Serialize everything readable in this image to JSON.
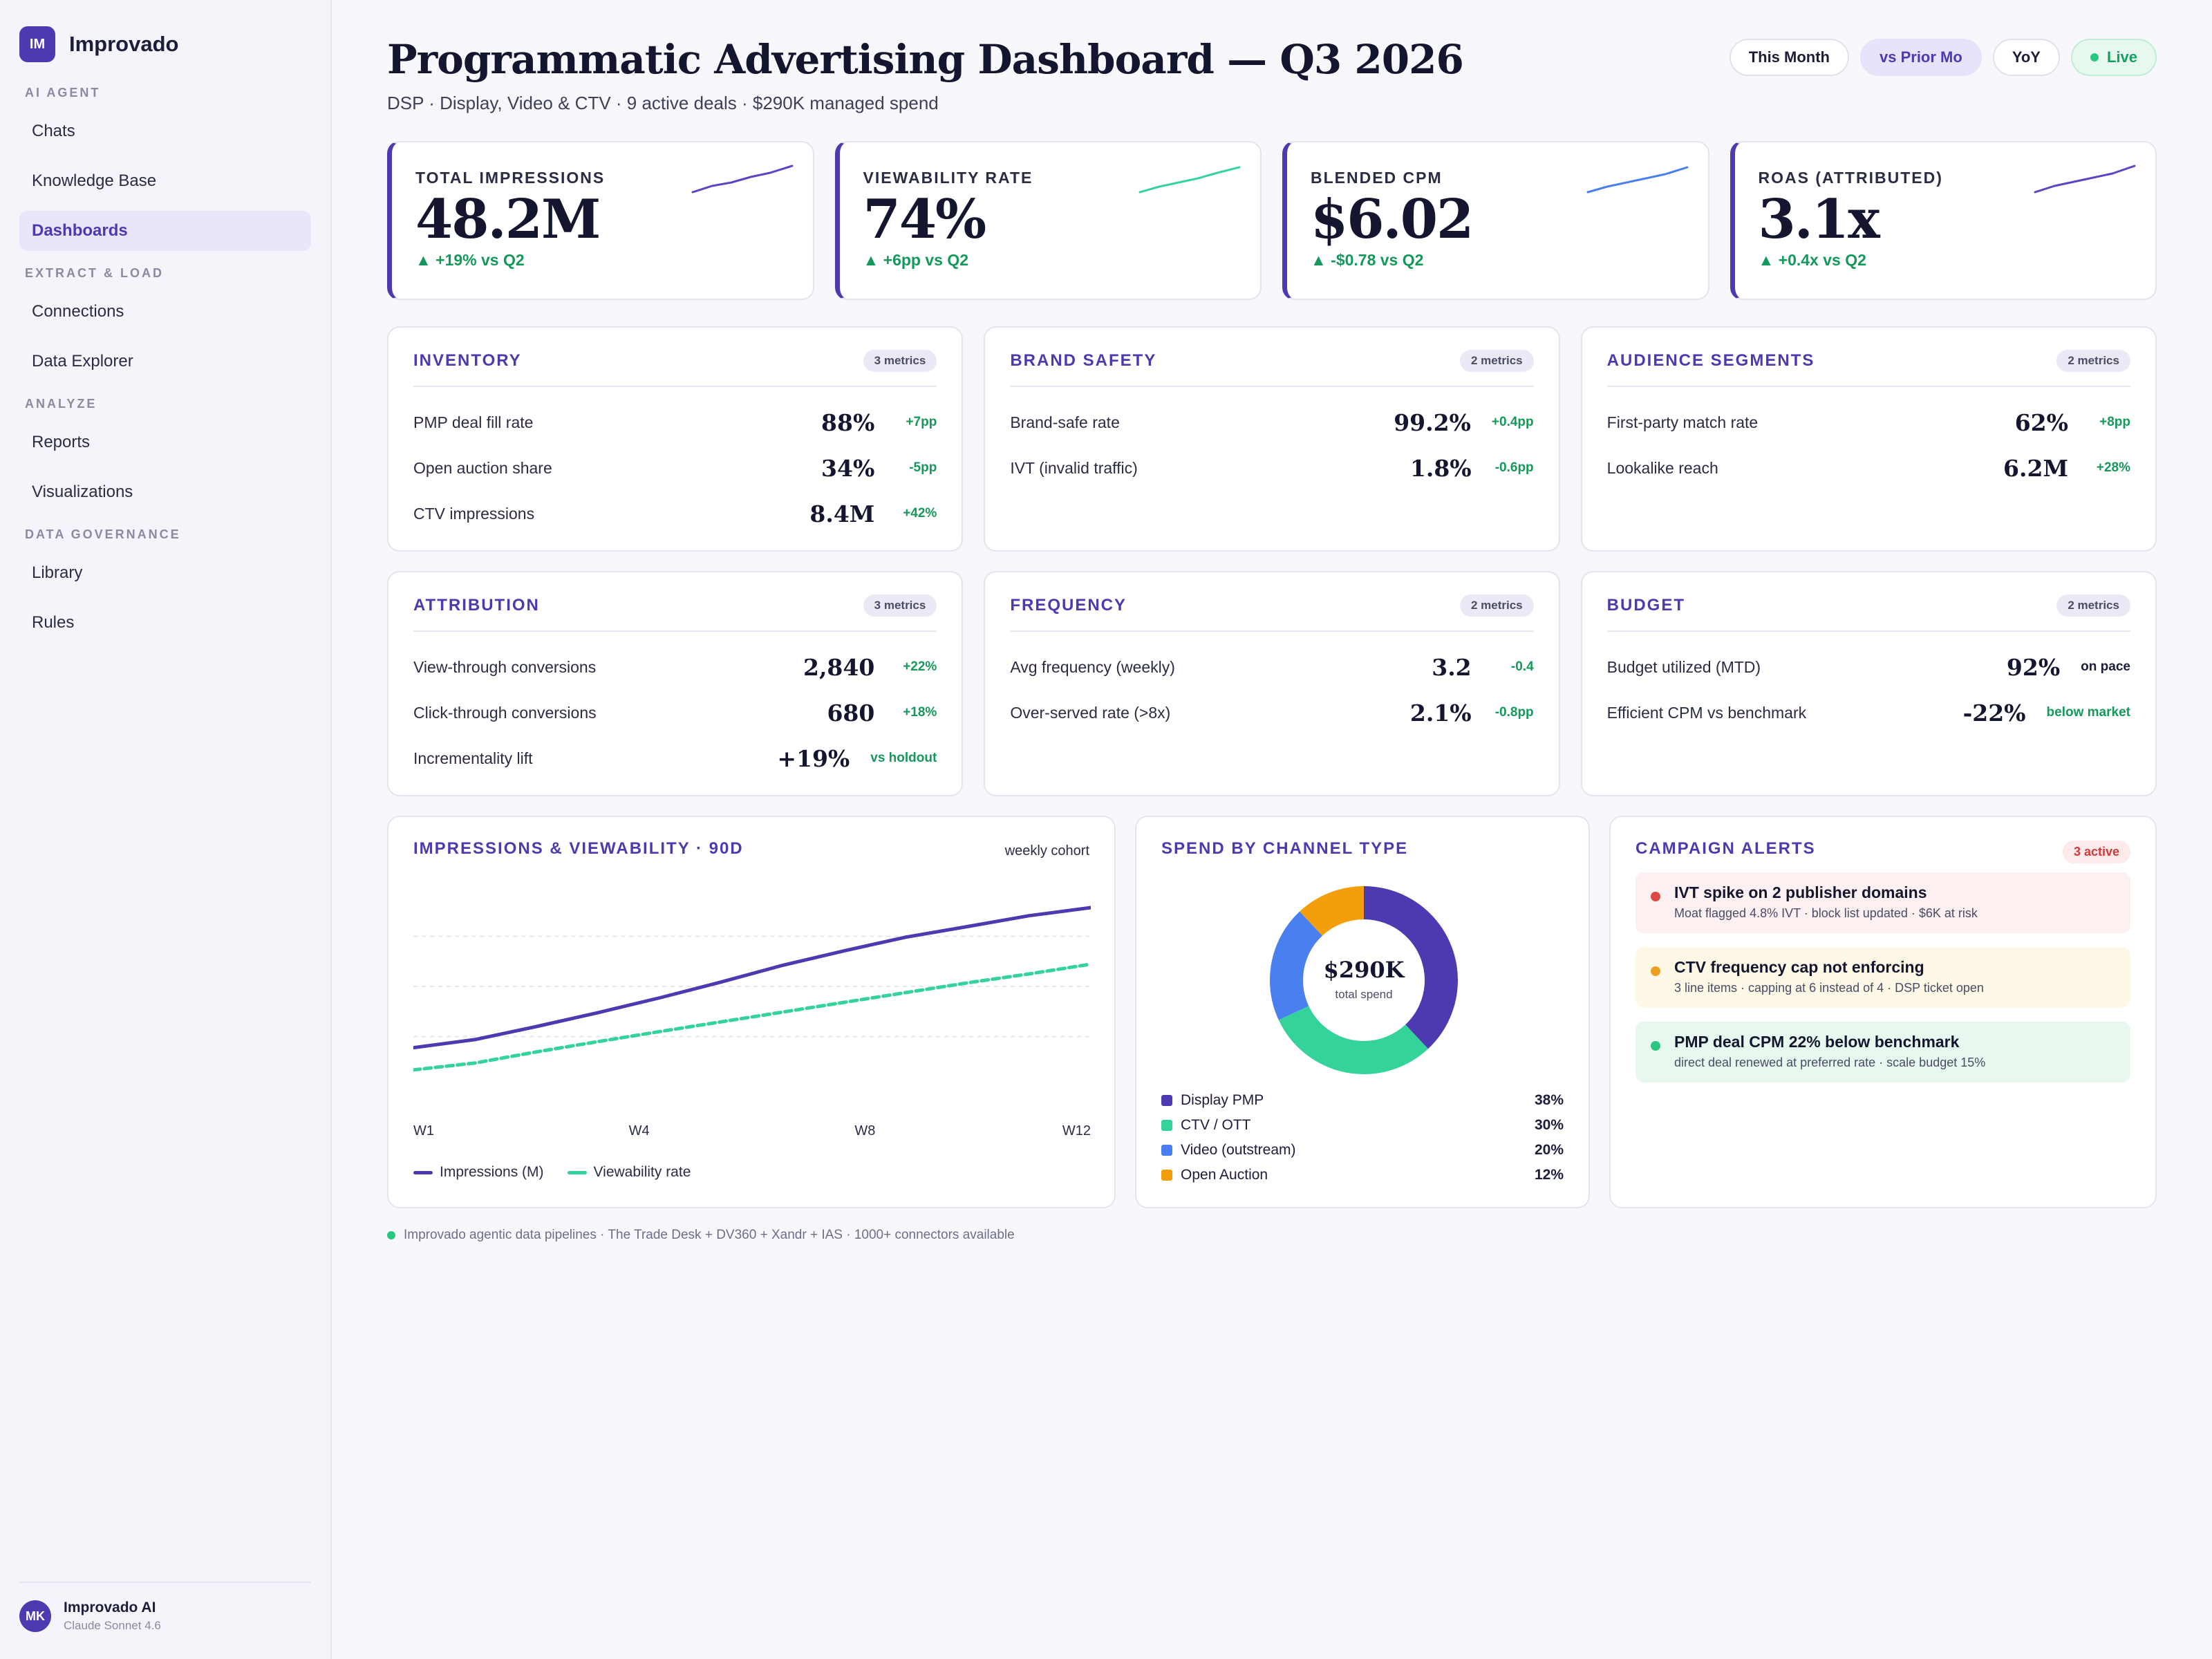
{
  "app": {
    "logo_text": "IM",
    "name": "Improvado"
  },
  "sidebar": {
    "sections": [
      {
        "title": "AI AGENT",
        "items": [
          {
            "label": "Chats"
          },
          {
            "label": "Knowledge Base"
          },
          {
            "label": "Dashboards",
            "active": true
          }
        ]
      },
      {
        "title": "EXTRACT & LOAD",
        "items": [
          {
            "label": "Connections"
          },
          {
            "label": "Data Explorer"
          }
        ]
      },
      {
        "title": "ANALYZE",
        "items": [
          {
            "label": "Reports"
          },
          {
            "label": "Visualizations"
          }
        ]
      },
      {
        "title": "DATA GOVERNANCE",
        "items": [
          {
            "label": "Library"
          },
          {
            "label": "Rules"
          }
        ]
      }
    ],
    "user": {
      "initials": "MK",
      "name": "Improvado AI",
      "model": "Claude Sonnet 4.6"
    }
  },
  "header": {
    "title": "Programmatic Advertising Dashboard — Q3 2026",
    "subtitle": "DSP · Display, Video & CTV · 9 active deals · $290K managed spend",
    "pills": [
      "This Month",
      "vs Prior Mo",
      "YoY",
      "Live"
    ]
  },
  "kpis": [
    {
      "label": "TOTAL IMPRESSIONS",
      "value": "48.2M",
      "delta": "▲ +19% vs Q2",
      "spark_color": "#5b45c4"
    },
    {
      "label": "VIEWABILITY RATE",
      "value": "74%",
      "delta": "▲ +6pp vs Q2",
      "spark_color": "#34d399"
    },
    {
      "label": "BLENDED CPM",
      "value": "$6.02",
      "delta": "▲ -$0.78 vs Q2",
      "spark_color": "#4a7ff0"
    },
    {
      "label": "ROAS (ATTRIBUTED)",
      "value": "3.1x",
      "delta": "▲ +0.4x vs Q2",
      "spark_color": "#5b45c4"
    }
  ],
  "cards_row1": [
    {
      "title": "INVENTORY",
      "badge": "3 metrics",
      "metrics": [
        {
          "label": "PMP deal fill rate",
          "value": "88%",
          "delta": "+7pp"
        },
        {
          "label": "Open auction share",
          "value": "34%",
          "delta": "-5pp"
        },
        {
          "label": "CTV impressions",
          "value": "8.4M",
          "delta": "+42%"
        }
      ]
    },
    {
      "title": "BRAND SAFETY",
      "badge": "2 metrics",
      "metrics": [
        {
          "label": "Brand-safe rate",
          "value": "99.2%",
          "delta": "+0.4pp"
        },
        {
          "label": "IVT (invalid traffic)",
          "value": "1.8%",
          "delta": "-0.6pp"
        }
      ]
    },
    {
      "title": "AUDIENCE SEGMENTS",
      "badge": "2 metrics",
      "metrics": [
        {
          "label": "First-party match rate",
          "value": "62%",
          "delta": "+8pp"
        },
        {
          "label": "Lookalike reach",
          "value": "6.2M",
          "delta": "+28%"
        }
      ]
    }
  ],
  "cards_row2": [
    {
      "title": "ATTRIBUTION",
      "badge": "3 metrics",
      "metrics": [
        {
          "label": "View-through conversions",
          "value": "2,840",
          "delta": "+22%"
        },
        {
          "label": "Click-through conversions",
          "value": "680",
          "delta": "+18%"
        },
        {
          "label": "Incrementality lift",
          "value": "+19%",
          "delta": "vs holdout"
        }
      ]
    },
    {
      "title": "FREQUENCY",
      "badge": "2 metrics",
      "metrics": [
        {
          "label": "Avg frequency (weekly)",
          "value": "3.2",
          "delta": "-0.4"
        },
        {
          "label": "Over-served rate (>8x)",
          "value": "2.1%",
          "delta": "-0.8pp"
        }
      ]
    },
    {
      "title": "BUDGET",
      "badge": "2 metrics",
      "metrics": [
        {
          "label": "Budget utilized (MTD)",
          "value": "92%",
          "delta": "on pace",
          "delta_color": "#1b1d3a"
        },
        {
          "label": "Efficient CPM vs benchmark",
          "value": "-22%",
          "delta": "below market"
        }
      ]
    }
  ],
  "trend": {
    "title": "IMPRESSIONS & VIEWABILITY · 90D",
    "note": "weekly cohort",
    "x_labels": [
      "W1",
      "W4",
      "W8",
      "W12"
    ]
  },
  "chart_data": {
    "type": "line",
    "x": [
      1,
      2,
      3,
      4,
      5,
      6,
      7,
      8,
      9,
      10,
      11,
      12
    ],
    "series": [
      {
        "name": "Impressions (M)",
        "color": "#4c3bb0",
        "style": "solid",
        "values": [
          2.0,
          4.9,
          9.6,
          14.6,
          19.9,
          25.6,
          31.6,
          36.8,
          41.7,
          45.5,
          49.4,
          52.3
        ]
      },
      {
        "name": "Viewability rate",
        "color": "#34d399",
        "style": "dashed",
        "values": [
          -6.0,
          -3.5,
          0.5,
          4.2,
          7.8,
          11.3,
          14.8,
          18.3,
          21.8,
          25.3,
          28.5,
          32.0
        ]
      }
    ],
    "ylim": [
      -12,
      60
    ],
    "grid": true,
    "legend": "bottom-left"
  },
  "spend": {
    "title": "SPEND BY CHANNEL TYPE",
    "center_value": "$290K",
    "center_label": "total spend",
    "channels": [
      {
        "label": "Display PMP",
        "pct": 38,
        "pct_label": "38%",
        "color": "#4c3bb0"
      },
      {
        "label": "CTV / OTT",
        "pct": 30,
        "pct_label": "30%",
        "color": "#34d399"
      },
      {
        "label": "Video (outstream)",
        "pct": 20,
        "pct_label": "20%",
        "color": "#4a7ff0"
      },
      {
        "label": "Open Auction",
        "pct": 12,
        "pct_label": "12%",
        "color": "#f59e0b"
      }
    ]
  },
  "alerts": {
    "title": "CAMPAIGN ALERTS",
    "badge": "3 active",
    "items": [
      {
        "title": "IVT spike on 2 publisher domains",
        "desc": "Moat flagged 4.8% IVT · block list updated · $6K at risk",
        "dot": "#e04848",
        "bg": "#fdf0f0"
      },
      {
        "title": "CTV frequency cap not enforcing",
        "desc": "3 line items · capping at 6 instead of 4 · DSP ticket open",
        "dot": "#f0a020",
        "bg": "#fef9e7"
      },
      {
        "title": "PMP deal CPM 22% below benchmark",
        "desc": "direct deal renewed at preferred rate · scale budget 15%",
        "dot": "#2bc77f",
        "bg": "#e9f8ef"
      }
    ]
  },
  "footer": {
    "text": "Improvado agentic data pipelines · The Trade Desk + DV360 + Xandr + IAS · 1000+ connectors available"
  }
}
